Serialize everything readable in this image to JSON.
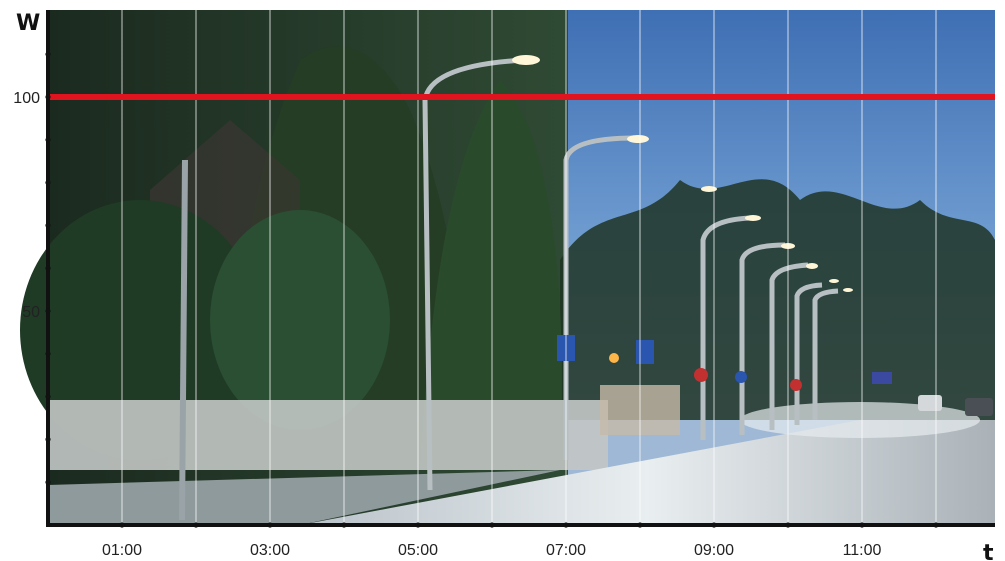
{
  "chart_data": {
    "type": "line",
    "title": "",
    "xlabel": "t",
    "ylabel": "W",
    "x_tick_labels": [
      "01:00",
      "03:00",
      "05:00",
      "07:00",
      "09:00",
      "11:00"
    ],
    "x_tick_positions_hours": [
      1,
      3,
      5,
      7,
      9,
      11
    ],
    "y_tick_labels": [
      "100",
      "50"
    ],
    "y_tick_values": [
      100,
      50
    ],
    "xlim": [
      0,
      12.8
    ],
    "ylim": [
      0,
      120
    ],
    "grid": "vertical",
    "background": "photo of a suburban street with lit street lamps at dusk",
    "series": [
      {
        "x": [
          0,
          12.8
        ],
        "values": [
          100,
          100
        ],
        "color": "#e0141e"
      }
    ]
  },
  "colors": {
    "line": "#e0141e",
    "axis": "#111111",
    "grid": "#ffffff"
  }
}
